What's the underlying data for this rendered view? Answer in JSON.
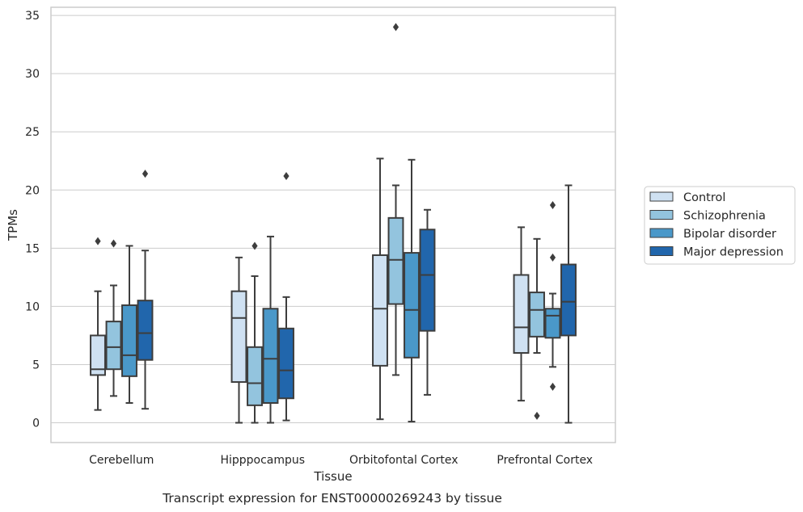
{
  "chart_data": {
    "type": "box",
    "caption": "Transcript expression for ENST00000269243 by tissue",
    "xlabel": "Tissue",
    "ylabel": "TPMs",
    "ylim": [
      -1.7,
      35.7
    ],
    "yticks": [
      0,
      5,
      10,
      15,
      20,
      25,
      30,
      35
    ],
    "grid": "horizontal",
    "legend_position": "right",
    "categories": [
      "Cerebellum",
      "Hipppocampus",
      "Orbitofontal Cortex",
      "Prefrontal Cortex"
    ],
    "series": [
      {
        "name": "Control",
        "color": "#cfe1f2",
        "boxes": [
          {
            "whislo": 1.1,
            "q1": 4.1,
            "med": 4.6,
            "q3": 7.5,
            "whishi": 11.3,
            "fliers": [
              15.6
            ]
          },
          {
            "whislo": 0.0,
            "q1": 3.5,
            "med": 9.0,
            "q3": 11.3,
            "whishi": 14.2,
            "fliers": []
          },
          {
            "whislo": 0.3,
            "q1": 4.9,
            "med": 9.8,
            "q3": 14.4,
            "whishi": 22.7,
            "fliers": []
          },
          {
            "whislo": 1.9,
            "q1": 6.0,
            "med": 8.2,
            "q3": 12.7,
            "whishi": 16.8,
            "fliers": []
          }
        ]
      },
      {
        "name": "Schizophrenia",
        "color": "#93c4de",
        "boxes": [
          {
            "whislo": 2.3,
            "q1": 4.6,
            "med": 6.5,
            "q3": 8.7,
            "whishi": 11.8,
            "fliers": [
              15.4
            ]
          },
          {
            "whislo": 0.0,
            "q1": 1.5,
            "med": 3.4,
            "q3": 6.5,
            "whishi": 12.6,
            "fliers": [
              15.2
            ]
          },
          {
            "whislo": 4.1,
            "q1": 10.2,
            "med": 14.0,
            "q3": 17.6,
            "whishi": 20.4,
            "fliers": [
              34.0
            ]
          },
          {
            "whislo": 6.0,
            "q1": 7.4,
            "med": 9.7,
            "q3": 11.2,
            "whishi": 15.8,
            "fliers": [
              0.6
            ]
          }
        ]
      },
      {
        "name": "Bipolar disorder",
        "color": "#4a98c9",
        "boxes": [
          {
            "whislo": 1.7,
            "q1": 4.0,
            "med": 5.8,
            "q3": 10.1,
            "whishi": 15.2,
            "fliers": []
          },
          {
            "whislo": 0.0,
            "q1": 1.7,
            "med": 5.5,
            "q3": 9.8,
            "whishi": 16.0,
            "fliers": []
          },
          {
            "whislo": 0.1,
            "q1": 5.6,
            "med": 9.7,
            "q3": 14.6,
            "whishi": 22.6,
            "fliers": []
          },
          {
            "whislo": 4.8,
            "q1": 7.3,
            "med": 9.2,
            "q3": 9.8,
            "whishi": 11.1,
            "fliers": [
              3.1,
              14.2,
              18.7
            ]
          }
        ]
      },
      {
        "name": "Major depression",
        "color": "#2166ac",
        "boxes": [
          {
            "whislo": 1.2,
            "q1": 5.4,
            "med": 7.7,
            "q3": 10.5,
            "whishi": 14.8,
            "fliers": [
              21.4
            ]
          },
          {
            "whislo": 0.2,
            "q1": 2.1,
            "med": 4.5,
            "q3": 8.1,
            "whishi": 10.8,
            "fliers": [
              21.2
            ]
          },
          {
            "whislo": 2.4,
            "q1": 7.9,
            "med": 12.7,
            "q3": 16.6,
            "whishi": 18.3,
            "fliers": []
          },
          {
            "whislo": 0.0,
            "q1": 7.5,
            "med": 10.4,
            "q3": 13.6,
            "whishi": 20.4,
            "fliers": []
          }
        ]
      }
    ]
  }
}
